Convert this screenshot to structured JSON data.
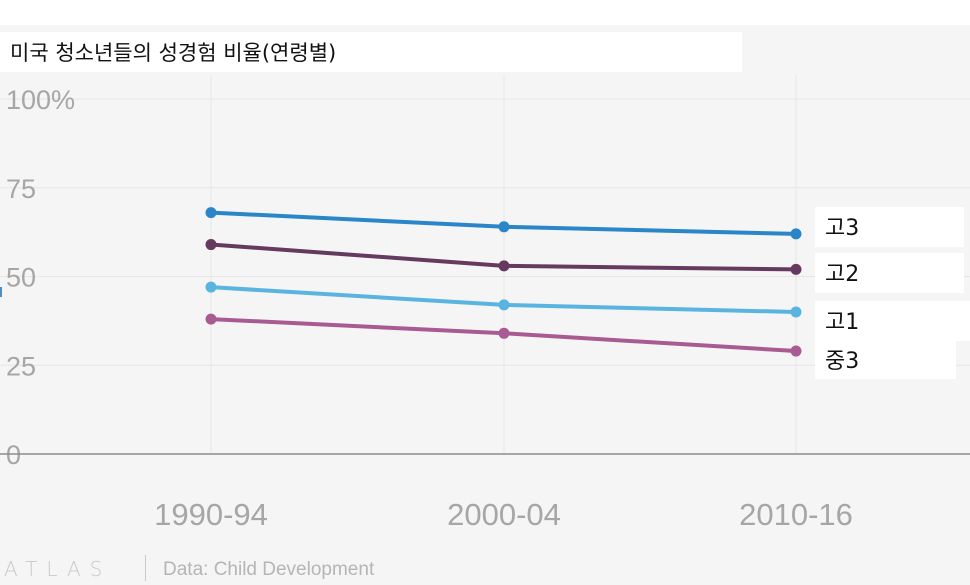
{
  "title": "미국 청소년들의 성경험 비율(연령별)",
  "brand": "ATLAS",
  "source": "Data: Child Development",
  "chart_data": {
    "type": "line",
    "title": "미국 청소년들의 성경험 비율(연령별)",
    "categories": [
      "1990-94",
      "2000-04",
      "2010-16"
    ],
    "y_ticks": [
      "100%",
      "75",
      "50",
      "25",
      "0"
    ],
    "ylim": [
      0,
      100
    ],
    "grid": true,
    "series": [
      {
        "name": "고3",
        "values": [
          68,
          64,
          62
        ],
        "color": "#2a86c8"
      },
      {
        "name": "고2",
        "values": [
          59,
          53,
          52
        ],
        "color": "#66395e"
      },
      {
        "name": "고1",
        "values": [
          47,
          42,
          40
        ],
        "color": "#5ab4e0"
      },
      {
        "name": "중3",
        "values": [
          38,
          34,
          29
        ],
        "color": "#a85b93"
      }
    ]
  }
}
